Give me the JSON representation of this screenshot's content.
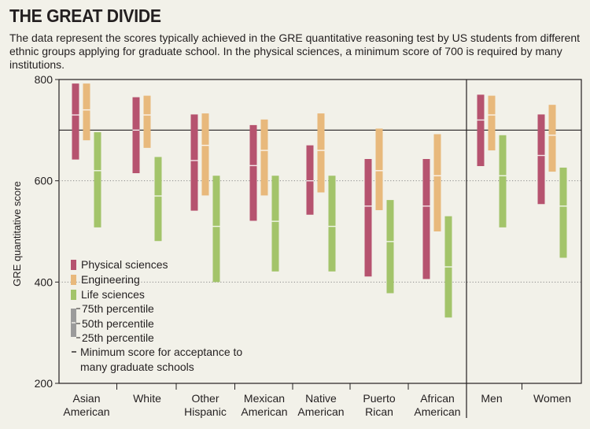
{
  "header": {
    "title": "THE GREAT DIVIDE",
    "subtitle": "The data represent the scores typically achieved in the GRE quantitative reasoning test by US students from different ethnic groups applying for graduate school. In the physical sciences, a minimum score of 700 is required by many institutions."
  },
  "chart_data": {
    "type": "range-bar",
    "ylabel": "GRE quantitative score",
    "ylim": [
      200,
      800
    ],
    "yticks": [
      200,
      400,
      600,
      800
    ],
    "grid": "dotted horizontal",
    "reference_line": {
      "value": 700,
      "label": "Minimum score for acceptance to many graduate schools"
    },
    "categories": [
      [
        "Asian",
        "American"
      ],
      [
        "White"
      ],
      [
        "Other",
        "Hispanic"
      ],
      [
        "Mexican",
        "American"
      ],
      [
        "Native",
        "American"
      ],
      [
        "Puerto",
        "Rican"
      ],
      [
        "African",
        "American"
      ],
      [
        "Men"
      ],
      [
        "Women"
      ]
    ],
    "group_divider_after": 7,
    "series": [
      {
        "name": "Physical sciences",
        "color": "#b6536f",
        "values": [
          {
            "p25": 642,
            "p50": 730,
            "p75": 792
          },
          {
            "p25": 615,
            "p50": 700,
            "p75": 765
          },
          {
            "p25": 541,
            "p50": 640,
            "p75": 731
          },
          {
            "p25": 521,
            "p50": 630,
            "p75": 710
          },
          {
            "p25": 533,
            "p50": 600,
            "p75": 670
          },
          {
            "p25": 411,
            "p50": 550,
            "p75": 643
          },
          {
            "p25": 406,
            "p50": 550,
            "p75": 643
          },
          {
            "p25": 629,
            "p50": 720,
            "p75": 770
          },
          {
            "p25": 554,
            "p50": 650,
            "p75": 731
          }
        ]
      },
      {
        "name": "Engineering",
        "color": "#e8b97c",
        "values": [
          {
            "p25": 680,
            "p50": 740,
            "p75": 792
          },
          {
            "p25": 665,
            "p50": 730,
            "p75": 768
          },
          {
            "p25": 571,
            "p50": 670,
            "p75": 733
          },
          {
            "p25": 571,
            "p50": 660,
            "p75": 721
          },
          {
            "p25": 577,
            "p50": 660,
            "p75": 733
          },
          {
            "p25": 542,
            "p50": 620,
            "p75": 703
          },
          {
            "p25": 500,
            "p50": 610,
            "p75": 692
          },
          {
            "p25": 660,
            "p50": 730,
            "p75": 768
          },
          {
            "p25": 618,
            "p50": 690,
            "p75": 750
          }
        ]
      },
      {
        "name": "Life sciences",
        "color": "#a3c46a",
        "values": [
          {
            "p25": 508,
            "p50": 620,
            "p75": 696
          },
          {
            "p25": 481,
            "p50": 570,
            "p75": 647
          },
          {
            "p25": 400,
            "p50": 510,
            "p75": 610
          },
          {
            "p25": 421,
            "p50": 520,
            "p75": 610
          },
          {
            "p25": 421,
            "p50": 510,
            "p75": 610
          },
          {
            "p25": 378,
            "p50": 480,
            "p75": 562
          },
          {
            "p25": 330,
            "p50": 430,
            "p75": 530
          },
          {
            "p25": 508,
            "p50": 610,
            "p75": 690
          },
          {
            "p25": 448,
            "p50": 550,
            "p75": 626
          }
        ]
      }
    ],
    "legend": {
      "placement": "lower-left",
      "percentile_labels": [
        "75th percentile",
        "50th percentile",
        "25th percentile"
      ],
      "percentile_color": "#9b9b9b"
    }
  }
}
